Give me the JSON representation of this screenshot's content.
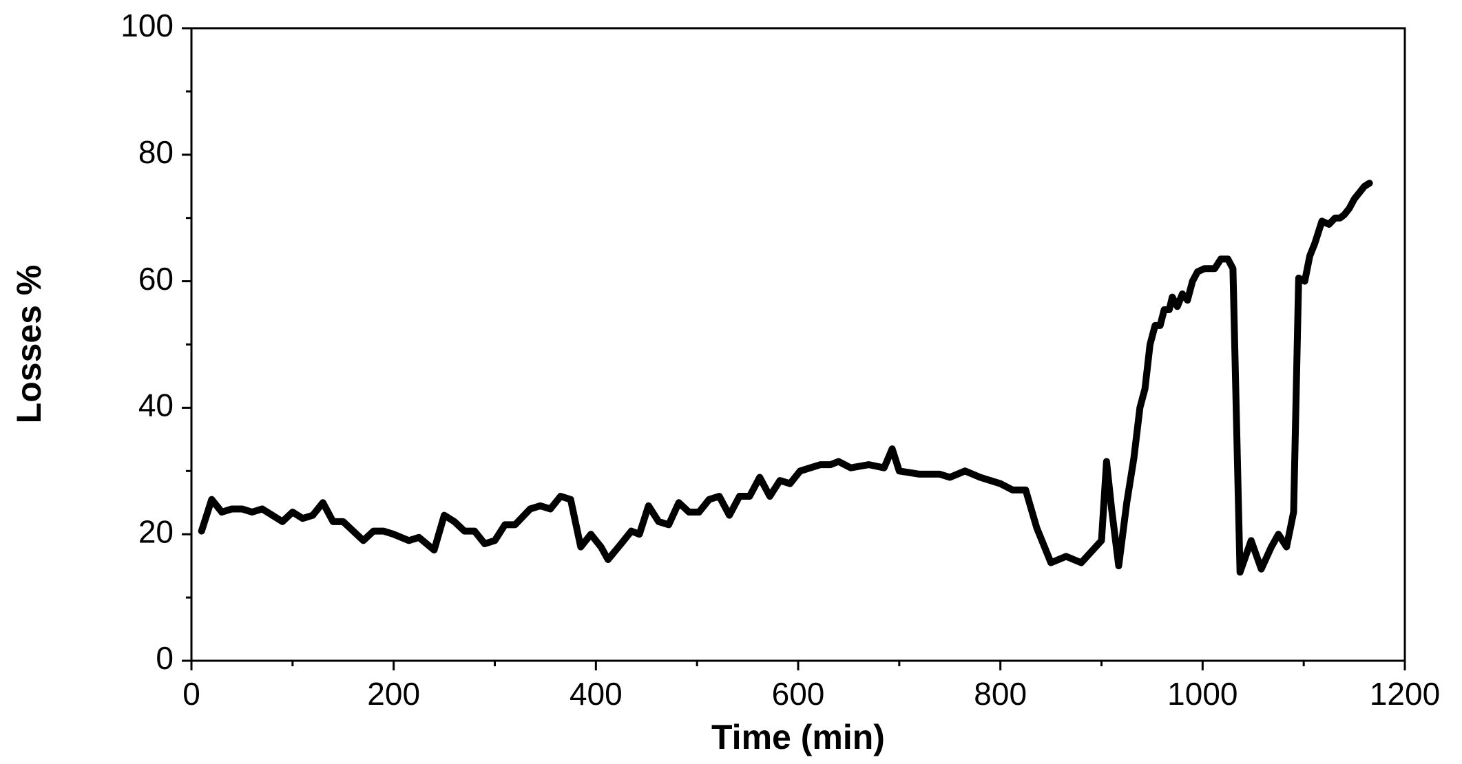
{
  "chart_data": {
    "type": "line",
    "x_label": "Time (min)",
    "y_label": "Losses %",
    "xlim": [
      0,
      1200
    ],
    "xticks": [
      0,
      200,
      400,
      600,
      800,
      1000,
      1200
    ],
    "xminorticks": [
      100,
      300,
      500,
      700,
      900,
      1100
    ],
    "ylim": [
      0,
      100
    ],
    "yticks": [
      0,
      20,
      40,
      60,
      80,
      100
    ],
    "yminorticks": [
      10,
      30,
      50,
      70,
      90
    ],
    "series": [
      {
        "color": "#000000",
        "x": [
          10,
          20,
          30,
          40,
          50,
          60,
          70,
          80,
          90,
          100,
          110,
          120,
          130,
          140,
          150,
          160,
          170,
          180,
          190,
          200,
          215,
          225,
          240,
          250,
          260,
          270,
          280,
          290,
          300,
          310,
          320,
          335,
          345,
          355,
          365,
          375,
          385,
          395,
          405,
          412,
          425,
          435,
          443,
          452,
          462,
          472,
          482,
          492,
          502,
          512,
          522,
          532,
          542,
          552,
          562,
          572,
          582,
          592,
          602,
          612,
          622,
          632,
          640,
          652,
          670,
          685,
          693,
          700,
          720,
          740,
          750,
          765,
          780,
          800,
          812,
          825,
          836,
          850,
          865,
          880,
          900,
          905,
          910,
          917,
          925,
          932,
          938,
          943,
          948,
          953,
          958,
          962,
          967,
          970,
          975,
          980,
          985,
          990,
          995,
          1002,
          1012,
          1018,
          1025,
          1030,
          1037,
          1048,
          1058,
          1068,
          1075,
          1083,
          1090,
          1095,
          1101,
          1106,
          1111,
          1118,
          1125,
          1131,
          1136,
          1140,
          1145,
          1150,
          1155,
          1160,
          1165
        ],
        "values": [
          20.5,
          25.5,
          23.5,
          24,
          24,
          23.5,
          24,
          23,
          22,
          23.5,
          22.5,
          23,
          25,
          22,
          22,
          20.5,
          19,
          20.5,
          20.5,
          20,
          19,
          19.5,
          17.5,
          23,
          22,
          20.5,
          20.5,
          18.5,
          19,
          21.5,
          21.5,
          24,
          24.5,
          24,
          26,
          25.5,
          18,
          20,
          18,
          16,
          18.5,
          20.5,
          20,
          24.5,
          22,
          21.5,
          25,
          23.5,
          23.5,
          25.5,
          26,
          23,
          26,
          26,
          29,
          26,
          28.5,
          28,
          30,
          30.5,
          31,
          31,
          31.5,
          30.5,
          31,
          30.5,
          33.5,
          30,
          29.5,
          29.5,
          29,
          30,
          29,
          28,
          27,
          27,
          21,
          15.5,
          16.5,
          15.5,
          19,
          31.5,
          24,
          15,
          25,
          32,
          40,
          43,
          50,
          53,
          53,
          55.5,
          55.5,
          57.5,
          56,
          58,
          57,
          60,
          61.5,
          62,
          62,
          63.5,
          63.5,
          62,
          14,
          19,
          14.5,
          18,
          20,
          18,
          23.5,
          60.5,
          60,
          64,
          66,
          69.5,
          69,
          70,
          70,
          70.5,
          71.5,
          73,
          74,
          75,
          75.5
        ]
      }
    ]
  }
}
